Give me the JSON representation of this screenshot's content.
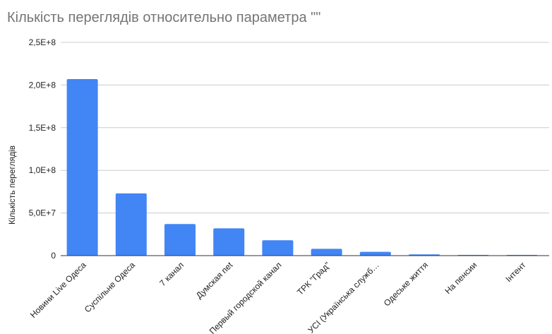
{
  "chart_data": {
    "type": "bar",
    "title": "Кількість переглядів относительно параметра \"\"",
    "xlabel": "",
    "ylabel": "Кількість переглядів",
    "categories": [
      "Новини Live Одеса",
      "Суспільне Одеса",
      "7 канал",
      "Думская net",
      "Первый городской канал",
      "ТРК \"Град\"",
      "УСІ (Українська служб…",
      "Одеське життя",
      "На пенсии",
      "Інтент"
    ],
    "values": [
      207000000,
      73000000,
      37000000,
      32000000,
      18000000,
      8000000,
      4500000,
      1500000,
      800000,
      600000
    ],
    "ylim": [
      0,
      250000000
    ],
    "yticks": [
      0,
      50000000,
      100000000,
      150000000,
      200000000,
      250000000
    ],
    "ytick_labels": [
      "0",
      "5,0E+7",
      "1,0E+8",
      "1,5E+8",
      "2,0E+8",
      "2,5E+8"
    ],
    "grid": true,
    "bar_color": "#4285f4",
    "grid_color": "#cccccc"
  }
}
